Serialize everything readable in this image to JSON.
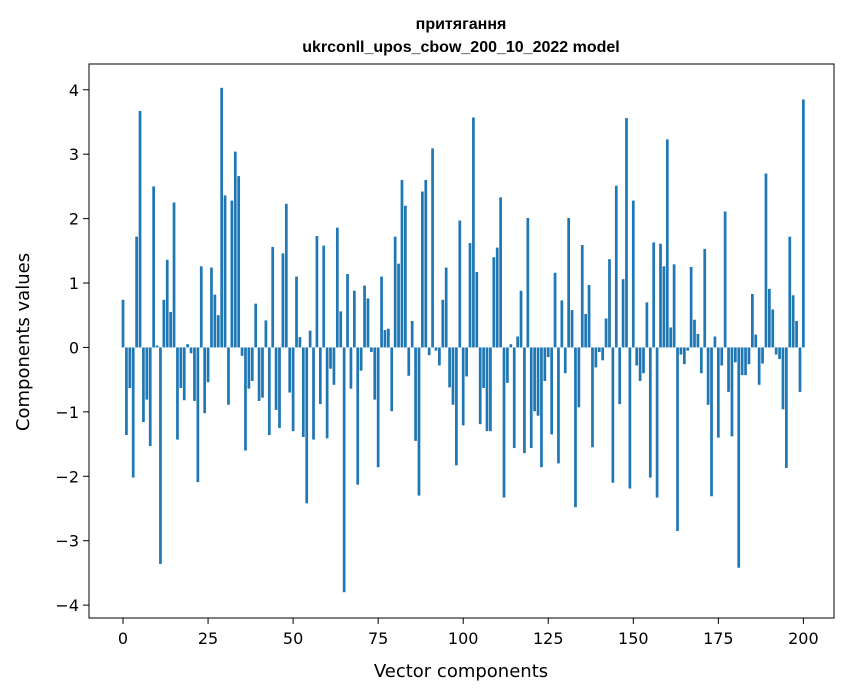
{
  "chart_data": {
    "type": "bar",
    "title": "притягання",
    "subtitle": "ukrconll_upos_cbow_200_10_2022 model",
    "xlabel": "Vector components",
    "ylabel": "Components values",
    "xlim": [
      -10,
      209
    ],
    "ylim": [
      -4.2,
      4.4
    ],
    "xticks": [
      0,
      25,
      50,
      75,
      100,
      125,
      150,
      175,
      200
    ],
    "xtick_labels": [
      "0",
      "25",
      "50",
      "75",
      "100",
      "125",
      "150",
      "175",
      "200"
    ],
    "yticks": [
      -4,
      -3,
      -2,
      -1,
      0,
      1,
      2,
      3,
      4
    ],
    "ytick_labels": [
      "−4",
      "−3",
      "−2",
      "−1",
      "0",
      "1",
      "2",
      "3",
      "4"
    ],
    "bar_color": "#1f77b4",
    "values": [
      0.74,
      -1.36,
      -0.63,
      -2.02,
      1.72,
      3.67,
      -1.16,
      -0.81,
      -1.53,
      2.5,
      0.03,
      -3.36,
      0.74,
      1.36,
      0.55,
      2.25,
      -1.43,
      -0.63,
      -0.82,
      0.05,
      -0.09,
      -0.83,
      -2.09,
      1.26,
      -1.02,
      -0.54,
      1.24,
      0.82,
      0.5,
      4.03,
      2.36,
      -0.89,
      2.28,
      3.04,
      2.66,
      -0.13,
      -1.6,
      -0.64,
      -0.52,
      0.68,
      -0.83,
      -0.78,
      0.42,
      -1.36,
      1.56,
      -0.97,
      -1.25,
      1.46,
      2.23,
      -0.7,
      -1.3,
      1.1,
      0.16,
      -1.39,
      -2.42,
      0.26,
      -1.43,
      1.73,
      -0.88,
      1.58,
      -1.41,
      -0.33,
      -0.58,
      1.86,
      0.56,
      -3.8,
      1.14,
      -0.64,
      0.88,
      -2.13,
      -0.36,
      0.96,
      0.76,
      -0.07,
      -0.81,
      -1.86,
      1.1,
      0.27,
      0.29,
      -0.99,
      1.72,
      1.3,
      2.6,
      2.2,
      -0.44,
      0.41,
      -1.45,
      -2.3,
      2.42,
      2.6,
      -0.12,
      3.09,
      -0.05,
      -0.28,
      0.74,
      1.24,
      -0.62,
      -0.89,
      -1.83,
      1.97,
      -1.21,
      -0.45,
      1.62,
      3.57,
      1.17,
      -1.19,
      -0.63,
      -1.3,
      -1.3,
      1.4,
      1.55,
      2.33,
      -2.33,
      -0.55,
      0.05,
      -1.56,
      0.17,
      0.88,
      -1.64,
      2.01,
      -1.56,
      -0.99,
      -1.06,
      -1.86,
      -0.52,
      -0.15,
      -1.35,
      1.16,
      -1.8,
      0.73,
      -0.4,
      2.01,
      0.58,
      -2.48,
      -0.93,
      1.59,
      0.52,
      0.97,
      -1.55,
      -0.31,
      -0.07,
      -0.2,
      0.45,
      1.37,
      -2.1,
      2.51,
      -0.88,
      1.06,
      3.56,
      -2.19,
      2.28,
      -0.28,
      -0.52,
      -0.4,
      0.7,
      -2.02,
      1.63,
      -2.33,
      1.61,
      1.26,
      3.23,
      0.31,
      1.29,
      -2.85,
      -0.11,
      -0.26,
      -0.05,
      1.25,
      0.43,
      0.21,
      -0.4,
      1.53,
      -0.89,
      -2.31,
      0.17,
      -1.4,
      -0.28,
      2.11,
      -0.69,
      -1.38,
      -0.23,
      -3.42,
      -0.43,
      -0.43,
      -0.26,
      0.83,
      0.2,
      -0.58,
      -0.25,
      2.7,
      0.91,
      0.59,
      -0.11,
      -0.18,
      -0.96,
      -1.87,
      1.72,
      0.81,
      0.41,
      -0.69,
      3.85
    ]
  }
}
